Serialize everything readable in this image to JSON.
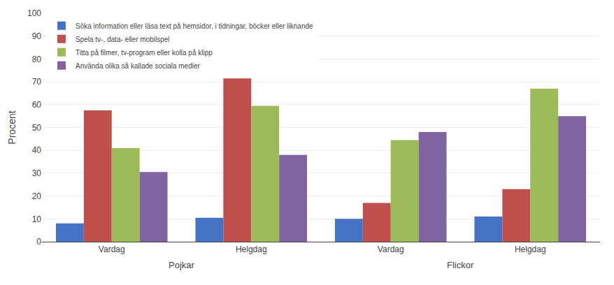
{
  "chart_data": {
    "type": "bar",
    "categories": [
      "Vardag",
      "Helgdag",
      "Vardag",
      "Helgdag"
    ],
    "annotations": [
      "Pojkar",
      "Flickor"
    ],
    "series": [
      {
        "name": "Söka information eller läsa text på hemsidor, i tidningar, böcker eller liknande",
        "color": "#4472C4",
        "values": [
          8,
          10.5,
          10,
          11
        ]
      },
      {
        "name": "Spela tv-, data- eller mobilspel",
        "color": "#C0504D",
        "values": [
          57.5,
          71.5,
          17,
          23
        ]
      },
      {
        "name": "Titta på filmer, tv-program eller kolla på klipp",
        "color": "#9BBB59",
        "values": [
          41,
          59.5,
          44.5,
          67
        ]
      },
      {
        "name": "Använda olika så kallade sociala medier",
        "color": "#8064A2",
        "values": [
          30.5,
          38,
          48,
          55
        ]
      }
    ],
    "ylabel": "Procent",
    "ylim": [
      0,
      100
    ],
    "yticks": [
      0,
      10,
      20,
      30,
      40,
      50,
      60,
      70,
      80,
      90,
      100
    ],
    "grid": true,
    "legend": "upper left"
  }
}
